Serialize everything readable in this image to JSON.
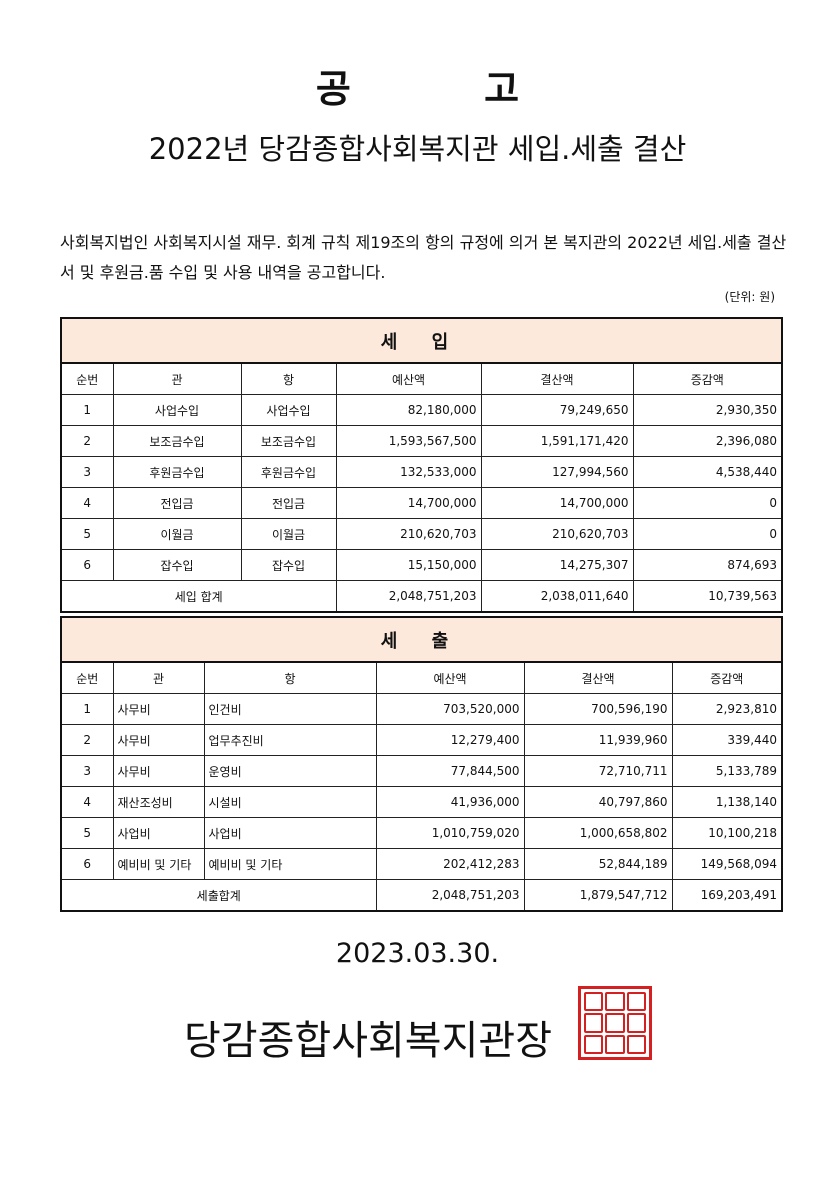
{
  "title": "공 고",
  "subtitle": "2022년 당감종합사회복지관 세입.세출 결산",
  "intro": "사회복지법인 사회복지시설 재무. 회계 규칙 제19조의 항의 규정에 의거 본 복지관의 2022년 세입.세출 결산서 및 후원금.품 수입 및 사용 내역을 공고합니다.",
  "unit": "(단위: 원)",
  "columns": [
    "순번",
    "관",
    "항",
    "예산액",
    "결산액",
    "증감액"
  ],
  "revenue": {
    "heading": "세 입",
    "rows": [
      [
        "1",
        "사업수입",
        "사업수입",
        "82,180,000",
        "79,249,650",
        "2,930,350"
      ],
      [
        "2",
        "보조금수입",
        "보조금수입",
        "1,593,567,500",
        "1,591,171,420",
        "2,396,080"
      ],
      [
        "3",
        "후원금수입",
        "후원금수입",
        "132,533,000",
        "127,994,560",
        "4,538,440"
      ],
      [
        "4",
        "전입금",
        "전입금",
        "14,700,000",
        "14,700,000",
        "0"
      ],
      [
        "5",
        "이월금",
        "이월금",
        "210,620,703",
        "210,620,703",
        "0"
      ],
      [
        "6",
        "잡수입",
        "잡수입",
        "15,150,000",
        "14,275,307",
        "874,693"
      ]
    ],
    "total": [
      "세입 합계",
      "2,048,751,203",
      "2,038,011,640",
      "10,739,563"
    ]
  },
  "expenditure": {
    "heading": "세 출",
    "rows": [
      [
        "1",
        "사무비",
        "인건비",
        "703,520,000",
        "700,596,190",
        "2,923,810"
      ],
      [
        "2",
        "사무비",
        "업무추진비",
        "12,279,400",
        "11,939,960",
        "339,440"
      ],
      [
        "3",
        "사무비",
        "운영비",
        "77,844,500",
        "72,710,711",
        "5,133,789"
      ],
      [
        "4",
        "재산조성비",
        "시설비",
        "41,936,000",
        "40,797,860",
        "1,138,140"
      ],
      [
        "5",
        "사업비",
        "사업비",
        "1,010,759,020",
        "1,000,658,802",
        "10,100,218"
      ],
      [
        "6",
        "예비비 및 기타",
        "예비비 및 기타",
        "202,412,283",
        "52,844,189",
        "149,568,094"
      ]
    ],
    "total": [
      "세출합계",
      "2,048,751,203",
      "1,879,547,712",
      "169,203,491"
    ]
  },
  "date": "2023.03.30.",
  "organization": "당감종합사회복지관장",
  "seal_color": "#d42020",
  "header_bg": "#fce9dc"
}
